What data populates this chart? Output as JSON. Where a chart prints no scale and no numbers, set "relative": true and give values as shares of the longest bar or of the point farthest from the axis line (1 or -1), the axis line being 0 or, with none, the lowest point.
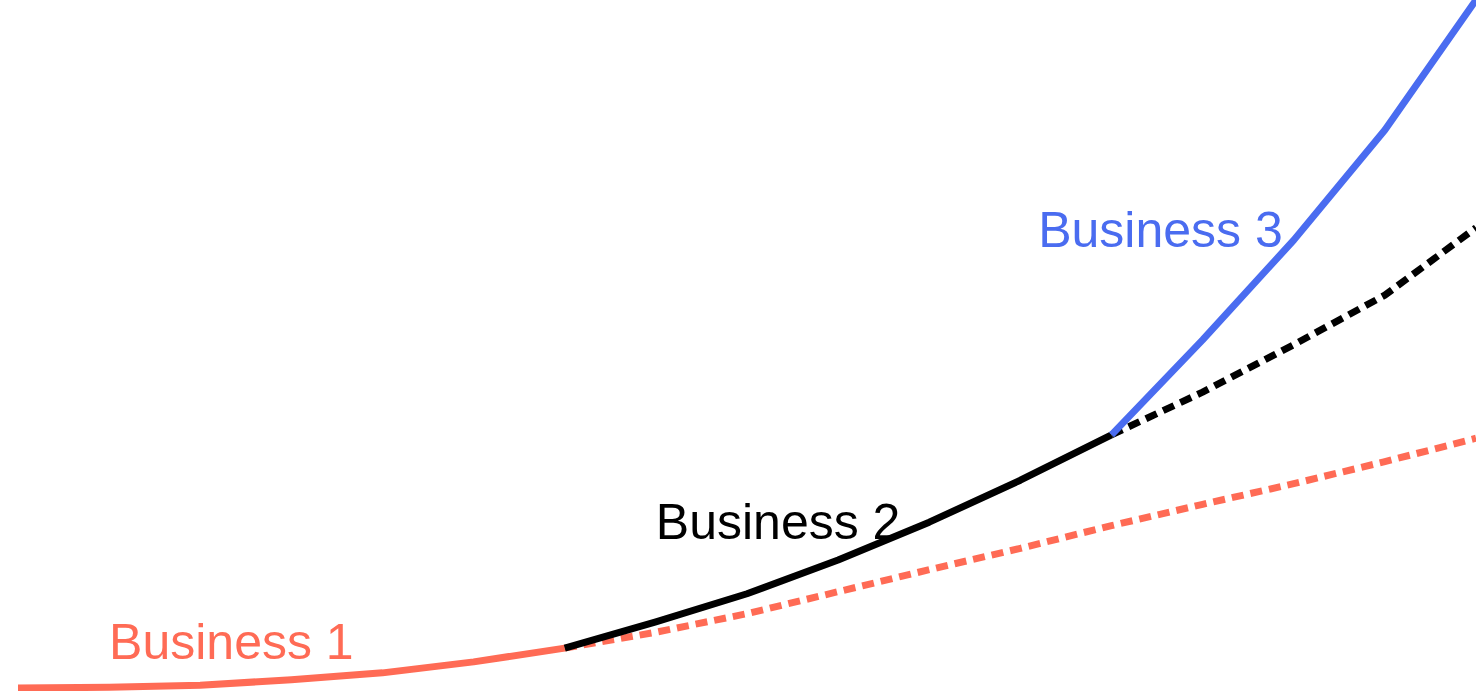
{
  "chart_data": {
    "type": "line",
    "relative": true,
    "marker": "none",
    "categories": [
      null,
      null,
      null,
      null,
      null,
      null,
      null,
      null,
      null,
      null,
      null,
      null,
      null,
      null,
      null,
      null,
      null
    ],
    "series": [
      {
        "name": "Business 1",
        "color": "#ff6b55",
        "line_style": "solid",
        "values": [
          0,
          0.001,
          0.004,
          0.012,
          0.022,
          0.038,
          0.058,
          null,
          null,
          null,
          null,
          null,
          null,
          null,
          null,
          null,
          null
        ]
      },
      {
        "color": "#ff6b55",
        "line_style": "dashed",
        "values": [
          null,
          null,
          null,
          null,
          null,
          null,
          0.058,
          0.081,
          0.108,
          0.14,
          0.172,
          0.203,
          0.236,
          0.267,
          0.297,
          0.329,
          0.363
        ]
      },
      {
        "name": "Business 2",
        "color": "#000000",
        "line_style": "solid",
        "values": [
          null,
          null,
          null,
          null,
          null,
          null,
          0.058,
          0.096,
          0.137,
          0.186,
          0.241,
          0.302,
          0.368,
          null,
          null,
          null,
          null
        ]
      },
      {
        "color": "#000000",
        "line_style": "dashed",
        "values": [
          null,
          null,
          null,
          null,
          null,
          null,
          null,
          null,
          null,
          null,
          null,
          null,
          0.368,
          0.43,
          0.499,
          0.571,
          0.669
        ]
      },
      {
        "name": "Business 3",
        "color": "#4a6cf0",
        "line_style": "solid",
        "values": [
          null,
          null,
          null,
          null,
          null,
          null,
          null,
          null,
          null,
          null,
          null,
          null,
          0.368,
          0.506,
          0.651,
          0.811,
          1
        ]
      }
    ]
  }
}
